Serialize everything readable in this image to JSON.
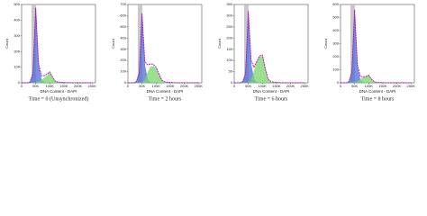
{
  "chart_data": [
    {
      "type": "line",
      "ylabel": "Count",
      "xlabel": "DNA Content - DAPI",
      "caption": "Time = 0 (Unsynchronized)",
      "x": [
        0,
        10000,
        20000,
        30000,
        40000,
        50000,
        60000,
        70000,
        80000,
        90000,
        100000,
        110000,
        120000,
        130000,
        140000,
        150000,
        160000,
        170000,
        180000,
        190000,
        200000,
        210000,
        220000,
        230000,
        240000,
        250000
      ],
      "xlim": [
        0,
        262144
      ],
      "ylim": [
        0,
        500
      ],
      "xticks": [
        {
          "value": 0,
          "label": "0"
        },
        {
          "value": 50000,
          "label": "50K"
        },
        {
          "value": 100000,
          "label": "100K"
        },
        {
          "value": 150000,
          "label": "150K"
        },
        {
          "value": 200000,
          "label": "200K"
        },
        {
          "value": 250000,
          "label": "250K"
        }
      ],
      "yticks": [
        0,
        100,
        200,
        300,
        400,
        500
      ],
      "series": [
        {
          "color": "#4d6bd8",
          "fill": true,
          "values": [
            0,
            0,
            0,
            5,
            60,
            470,
            110,
            20,
            5,
            0,
            0,
            0,
            0,
            0,
            0,
            0,
            0,
            0,
            0,
            0,
            0,
            0,
            0,
            0,
            0,
            0
          ]
        },
        {
          "color": "#7cd46b",
          "fill": true,
          "values": [
            0,
            0,
            0,
            0,
            0,
            0,
            5,
            15,
            30,
            45,
            65,
            30,
            8,
            2,
            0,
            0,
            0,
            0,
            0,
            0,
            0,
            0,
            0,
            0,
            0,
            0
          ]
        },
        {
          "color": "#b010b0",
          "fill": false,
          "values": [
            0,
            0,
            0,
            5,
            60,
            480,
            125,
            45,
            45,
            55,
            70,
            35,
            10,
            5,
            3,
            2,
            1,
            1,
            0,
            0,
            0,
            0,
            0,
            0,
            0,
            0
          ]
        }
      ]
    },
    {
      "type": "line",
      "ylabel": "Count",
      "xlabel": "DNA Content - DAPI",
      "caption": "Time = 2 hours",
      "x": [
        0,
        10000,
        20000,
        30000,
        40000,
        50000,
        60000,
        70000,
        80000,
        90000,
        100000,
        110000,
        120000,
        130000,
        140000,
        150000,
        160000,
        170000,
        180000,
        190000,
        200000,
        210000,
        220000,
        230000,
        240000,
        250000
      ],
      "xlim": [
        0,
        262144
      ],
      "ylim": [
        0,
        700
      ],
      "xticks": [
        {
          "value": 0,
          "label": "0"
        },
        {
          "value": 50000,
          "label": "50K"
        },
        {
          "value": 100000,
          "label": "100K"
        },
        {
          "value": 150000,
          "label": "150K"
        },
        {
          "value": 200000,
          "label": "200K"
        },
        {
          "value": 250000,
          "label": "250K"
        }
      ],
      "yticks": [
        0,
        100,
        200,
        300,
        400,
        500,
        600,
        700
      ],
      "series": [
        {
          "color": "#4d6bd8",
          "fill": true,
          "values": [
            0,
            0,
            0,
            10,
            90,
            600,
            150,
            30,
            5,
            0,
            0,
            0,
            0,
            0,
            0,
            0,
            0,
            0,
            0,
            0,
            0,
            0,
            0,
            0,
            0,
            0
          ]
        },
        {
          "color": "#7cd46b",
          "fill": true,
          "values": [
            0,
            0,
            0,
            0,
            0,
            0,
            20,
            90,
            140,
            150,
            130,
            70,
            20,
            5,
            0,
            0,
            0,
            0,
            0,
            0,
            0,
            0,
            0,
            0,
            0,
            0
          ]
        },
        {
          "color": "#b010b0",
          "fill": false,
          "values": [
            0,
            0,
            0,
            10,
            90,
            620,
            190,
            160,
            170,
            165,
            140,
            80,
            25,
            10,
            5,
            3,
            2,
            1,
            0,
            0,
            0,
            0,
            0,
            0,
            0,
            0
          ]
        }
      ]
    },
    {
      "type": "line",
      "ylabel": "Count",
      "xlabel": "DNA Content - DAPI",
      "caption": "Time = 6 hours",
      "x": [
        0,
        10000,
        20000,
        30000,
        40000,
        50000,
        60000,
        70000,
        80000,
        90000,
        100000,
        110000,
        120000,
        130000,
        140000,
        150000,
        160000,
        170000,
        180000,
        190000,
        200000,
        210000,
        220000,
        230000,
        240000,
        250000
      ],
      "xlim": [
        0,
        262144
      ],
      "ylim": [
        0,
        350
      ],
      "xticks": [
        {
          "value": 0,
          "label": "0"
        },
        {
          "value": 50000,
          "label": "50K"
        },
        {
          "value": 100000,
          "label": "100K"
        },
        {
          "value": 150000,
          "label": "150K"
        },
        {
          "value": 200000,
          "label": "200K"
        },
        {
          "value": 250000,
          "label": "250K"
        }
      ],
      "yticks": [
        0,
        50,
        100,
        150,
        200,
        250,
        300,
        350
      ],
      "series": [
        {
          "color": "#4d6bd8",
          "fill": true,
          "values": [
            0,
            0,
            0,
            5,
            40,
            300,
            80,
            15,
            3,
            0,
            0,
            0,
            0,
            0,
            0,
            0,
            0,
            0,
            0,
            0,
            0,
            0,
            0,
            0,
            0,
            0
          ]
        },
        {
          "color": "#7cd46b",
          "fill": true,
          "values": [
            0,
            0,
            0,
            0,
            0,
            0,
            10,
            50,
            90,
            115,
            120,
            60,
            15,
            3,
            0,
            0,
            0,
            0,
            0,
            0,
            0,
            0,
            0,
            0,
            0,
            0
          ]
        },
        {
          "color": "#b010b0",
          "fill": false,
          "values": [
            0,
            0,
            0,
            5,
            40,
            320,
            100,
            70,
            95,
            120,
            125,
            65,
            18,
            6,
            3,
            2,
            1,
            0,
            0,
            0,
            0,
            0,
            0,
            0,
            0,
            0
          ]
        }
      ]
    },
    {
      "type": "line",
      "ylabel": "Count",
      "xlabel": "DNA Content - DAPI",
      "caption": "Time = 8 hours",
      "x": [
        0,
        10000,
        20000,
        30000,
        40000,
        50000,
        60000,
        70000,
        80000,
        90000,
        100000,
        110000,
        120000,
        130000,
        140000,
        150000,
        160000,
        170000,
        180000,
        190000,
        200000,
        210000,
        220000,
        230000,
        240000,
        250000
      ],
      "xlim": [
        0,
        262144
      ],
      "ylim": [
        0,
        600
      ],
      "xticks": [
        {
          "value": 0,
          "label": "0"
        },
        {
          "value": 50000,
          "label": "50K"
        },
        {
          "value": 100000,
          "label": "100K"
        },
        {
          "value": 150000,
          "label": "150K"
        },
        {
          "value": 200000,
          "label": "200K"
        },
        {
          "value": 250000,
          "label": "250K"
        }
      ],
      "yticks": [
        0,
        100,
        200,
        300,
        400,
        500,
        600
      ],
      "series": [
        {
          "color": "#4d6bd8",
          "fill": true,
          "values": [
            0,
            0,
            0,
            8,
            80,
            540,
            120,
            20,
            4,
            0,
            0,
            0,
            0,
            0,
            0,
            0,
            0,
            0,
            0,
            0,
            0,
            0,
            0,
            0,
            0,
            0
          ]
        },
        {
          "color": "#7cd46b",
          "fill": true,
          "values": [
            0,
            0,
            0,
            0,
            0,
            0,
            8,
            25,
            40,
            45,
            55,
            25,
            6,
            1,
            0,
            0,
            0,
            0,
            0,
            0,
            0,
            0,
            0,
            0,
            0,
            0
          ]
        },
        {
          "color": "#b010b0",
          "fill": false,
          "values": [
            0,
            0,
            0,
            8,
            80,
            560,
            140,
            50,
            45,
            48,
            58,
            28,
            8,
            3,
            2,
            1,
            0,
            0,
            0,
            0,
            0,
            0,
            0,
            0,
            0,
            0
          ]
        }
      ]
    }
  ]
}
